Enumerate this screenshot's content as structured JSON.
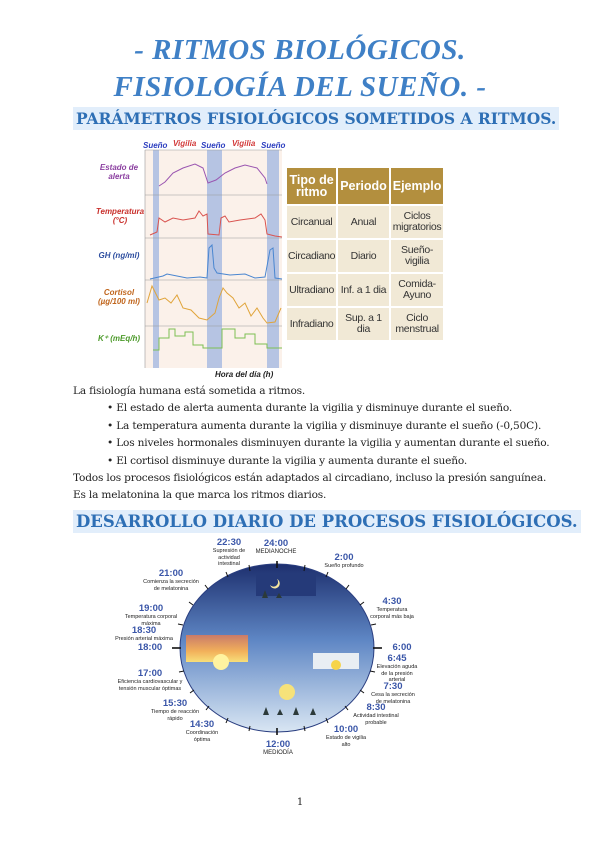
{
  "title": {
    "line1": "- RITMOS BIOLÓGICOS.",
    "line2": "FISIOLOGÍA DEL SUEÑO. -"
  },
  "section1": {
    "heading": "PARÁMETROS FISIOLÓGICOS SOMETIDOS A RITMOS.",
    "figure": {
      "phases": [
        "Sueño",
        "Vigilia",
        "Sueño",
        "Vigilia",
        "Sueño"
      ],
      "rows": [
        "Estado de alerta",
        "Temperatura (°C)",
        "GH (ng/ml)",
        "Cortisol (µg/100 ml)",
        "K⁺ (mEq/h)"
      ],
      "xlabel": "Hora del día (h)"
    },
    "table": {
      "headers": [
        "Tipo de ritmo",
        "Periodo",
        "Ejemplo"
      ],
      "rows": [
        [
          "Circanual",
          "Anual",
          "Ciclos migratorios"
        ],
        [
          "Circadiano",
          "Diario",
          "Sueño-vigilia"
        ],
        [
          "Ultradiano",
          "Inf. a 1 dia",
          "Comida-Ayuno"
        ],
        [
          "Infradiano",
          "Sup. a 1 dia",
          "Ciclo menstrual"
        ]
      ]
    },
    "intro": "La fisiología humana está sometida a ritmos.",
    "bullets": [
      "• El estado de alerta aumenta durante la vigilia y disminuye durante el sueño.",
      "• La temperatura aumenta durante la vigilia y disminuye durante el sueño (-0,50C).",
      "• Los niveles hormonales disminuyen durante la vigilia y aumentan durante el sueño.",
      "• El cortisol disminuye durante la vigilia y aumenta durante el sueño."
    ],
    "p2": "Todos los procesos fisiológicos están adaptados al circadiano, incluso la presión sanguínea.",
    "p3": "Es la melatonina la que marca los ritmos diarios."
  },
  "section2": {
    "heading": "DESARROLLO DIARIO DE PROCESOS FISIOLÓGICOS.",
    "events": [
      {
        "time": "22:30",
        "desc": "Supresión de actividad intestinal"
      },
      {
        "time": "24:00",
        "desc": "MEDIANOCHE"
      },
      {
        "time": "2:00",
        "desc": "Sueño profundo"
      },
      {
        "time": "4:30",
        "desc": "Temperatura corporal más baja"
      },
      {
        "time": "6:00",
        "desc": ""
      },
      {
        "time": "6:45",
        "desc": "Elevación aguda de la presión arterial"
      },
      {
        "time": "7:30",
        "desc": "Cesa la secreción de melatonina"
      },
      {
        "time": "8:30",
        "desc": "Actividad intestinal probable"
      },
      {
        "time": "10:00",
        "desc": "Estado de vigilia alto"
      },
      {
        "time": "12:00",
        "desc": "MEDIODÍA"
      },
      {
        "time": "14:30",
        "desc": "Coordinación óptima"
      },
      {
        "time": "15:30",
        "desc": "Tiempo de reacción rápido"
      },
      {
        "time": "17:00",
        "desc": "Eficiencia cardiovascular y tensión muscular óptimas"
      },
      {
        "time": "18:00",
        "desc": ""
      },
      {
        "time": "18:30",
        "desc": "Presión arterial máxima"
      },
      {
        "time": "19:00",
        "desc": "Temperatura corporal máxima"
      },
      {
        "time": "21:00",
        "desc": "Comienza la secreción de melatonina"
      }
    ]
  },
  "page_number": "1"
}
